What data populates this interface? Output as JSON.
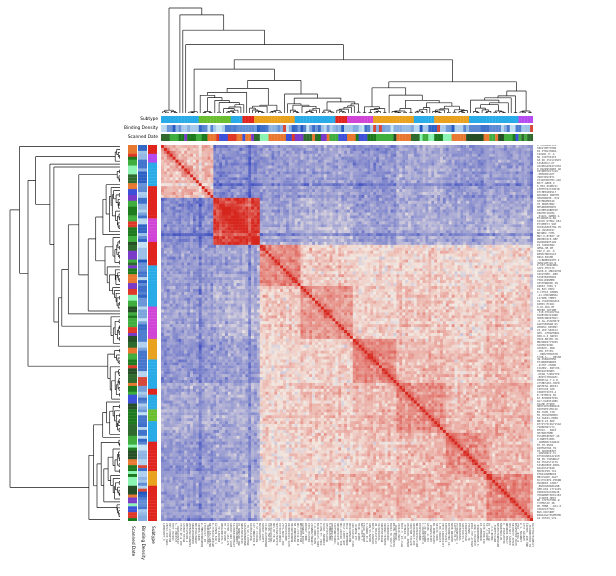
{
  "figure": {
    "kind": "clustered correlation heatmap (clustermap)",
    "background": "#ffffff",
    "title": ""
  },
  "annotations": {
    "top_labels": [
      "Subtype",
      "Binding Density",
      "Scanned Date"
    ],
    "bottom_left_labels": [
      "Scanned Date",
      "Binding Density",
      "Subtype"
    ]
  },
  "chart_data": {
    "type": "heatmap",
    "subtype": "sample-by-sample correlation matrix with hierarchical clustering dendrograms on top and left, three annotation tracks per axis, tiny illegible sample labels on right and bottom",
    "n_samples": 128,
    "dendrograms": [
      "top",
      "left"
    ],
    "dendrogram_color": "#1a1a1a",
    "colormap": {
      "low": "#3b4cc0",
      "mid": "#f3e9e1",
      "high": "#d6261d",
      "range": [
        -1,
        1
      ],
      "diagonal_value": 1
    },
    "cluster_sizes": [
      18,
      16,
      14,
      18,
      15,
      17,
      14,
      16
    ],
    "cluster_correlation": [
      [
        0.25,
        -0.55,
        -0.45,
        -0.4,
        -0.5,
        -0.35,
        -0.45,
        -0.4
      ],
      [
        -0.55,
        0.85,
        -0.4,
        -0.3,
        -0.45,
        -0.35,
        -0.4,
        -0.3
      ],
      [
        -0.45,
        -0.4,
        0.45,
        0.15,
        0.05,
        0.1,
        0.05,
        0.1
      ],
      [
        -0.4,
        -0.3,
        0.15,
        0.4,
        0.1,
        0.18,
        0.12,
        0.18
      ],
      [
        -0.5,
        -0.45,
        0.05,
        0.1,
        0.45,
        0.22,
        0.15,
        0.22
      ],
      [
        -0.35,
        -0.35,
        0.1,
        0.18,
        0.22,
        0.4,
        0.22,
        0.28
      ],
      [
        -0.45,
        -0.4,
        0.05,
        0.12,
        0.15,
        0.22,
        0.45,
        0.26
      ],
      [
        -0.4,
        -0.3,
        0.1,
        0.18,
        0.22,
        0.28,
        0.26,
        0.5
      ]
    ],
    "noise_sd": 0.12,
    "stripe_bias": {
      "spread": 0.22,
      "strong_blue_prob": 0.05,
      "strong_blue_value": -0.45
    },
    "near_diagonal_boost": {
      "max": 0.55,
      "falloff": 0.2,
      "width": 2
    },
    "tracks": {
      "subtype": {
        "kind": "categorical",
        "colors": [
          "#e0251e",
          "#6abe30",
          "#e8a21f",
          "#29abe8",
          "#b44bf0",
          "#d145d6"
        ],
        "weights": [
          2.0,
          1.2,
          1.5,
          4.5,
          1.1,
          1.3
        ],
        "run_length": [
          2,
          14
        ]
      },
      "binding_density": {
        "kind": "continuous",
        "low": "#1f55c0",
        "high": "#c9e6f5",
        "outlier": "#d84838",
        "outlier_prob": 0.05,
        "repeat_prob": 0.3
      },
      "scanned_date": {
        "kind": "categorical",
        "colors": [
          "#1e7a1e",
          "#3fae3f",
          "#8cf5b4",
          "#2f6b2f",
          "#3c50d8",
          "#7a3cc8",
          "#e87830",
          "#e03828",
          "#274f27"
        ],
        "weights": [
          2.0,
          1.6,
          0.9,
          1.6,
          1.0,
          0.8,
          1.6,
          0.9,
          1.2
        ],
        "run_length": [
          1,
          3
        ]
      }
    },
    "labels": {
      "legible": false,
      "charset": "ACGTBDHKMNPRSWXY0123456789._-",
      "length_range": [
        11,
        15
      ]
    },
    "seeds": {
      "heatmap": 1337,
      "top_dendro": 77,
      "left_dendro": 913,
      "tracks_col": 555,
      "tracks_row": 808,
      "labels": 4242
    }
  }
}
